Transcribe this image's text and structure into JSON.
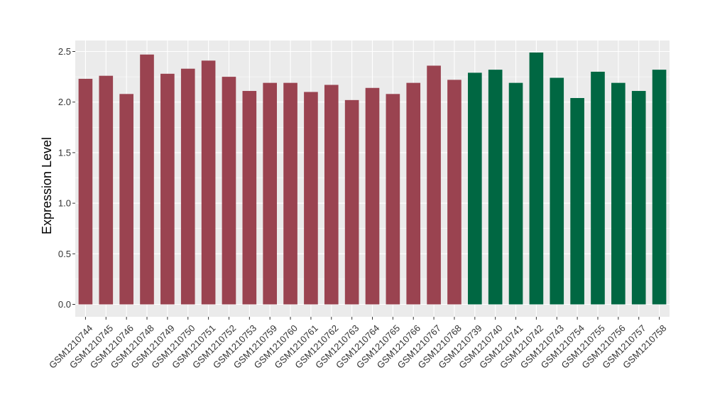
{
  "chart_data": {
    "type": "bar",
    "title": "",
    "xlabel": "",
    "ylabel": "Expression Level",
    "ylim": [
      0,
      2.5
    ],
    "y_ticks": [
      "0.0",
      "0.5",
      "1.0",
      "1.5",
      "2.0",
      "2.5"
    ],
    "y_tick_values": [
      0,
      0.5,
      1.0,
      1.5,
      2.0,
      2.5
    ],
    "grid": true,
    "legend": "none",
    "categories": [
      "GSM1210744",
      "GSM1210745",
      "GSM1210746",
      "GSM1210748",
      "GSM1210749",
      "GSM1210750",
      "GSM1210751",
      "GSM1210752",
      "GSM1210753",
      "GSM1210759",
      "GSM1210760",
      "GSM1210761",
      "GSM1210762",
      "GSM1210763",
      "GSM1210764",
      "GSM1210765",
      "GSM1210766",
      "GSM1210767",
      "GSM1210768",
      "GSM1210739",
      "GSM1210740",
      "GSM1210741",
      "GSM1210742",
      "GSM1210743",
      "GSM1210754",
      "GSM1210755",
      "GSM1210756",
      "GSM1210757",
      "GSM1210758"
    ],
    "values": [
      2.23,
      2.26,
      2.08,
      2.47,
      2.28,
      2.33,
      2.41,
      2.25,
      2.11,
      2.19,
      2.19,
      2.1,
      2.17,
      2.02,
      2.14,
      2.08,
      2.19,
      2.36,
      2.22,
      2.29,
      2.32,
      2.19,
      2.49,
      2.24,
      2.04,
      2.3,
      2.19,
      2.11,
      2.32
    ],
    "groups": [
      0,
      0,
      0,
      0,
      0,
      0,
      0,
      0,
      0,
      0,
      0,
      0,
      0,
      0,
      0,
      0,
      0,
      0,
      0,
      1,
      1,
      1,
      1,
      1,
      1,
      1,
      1,
      1,
      1
    ],
    "group_colors": [
      "#9a4350",
      "#006742"
    ],
    "panel_background": "#ebebeb",
    "gridline_color": "#ffffff"
  }
}
